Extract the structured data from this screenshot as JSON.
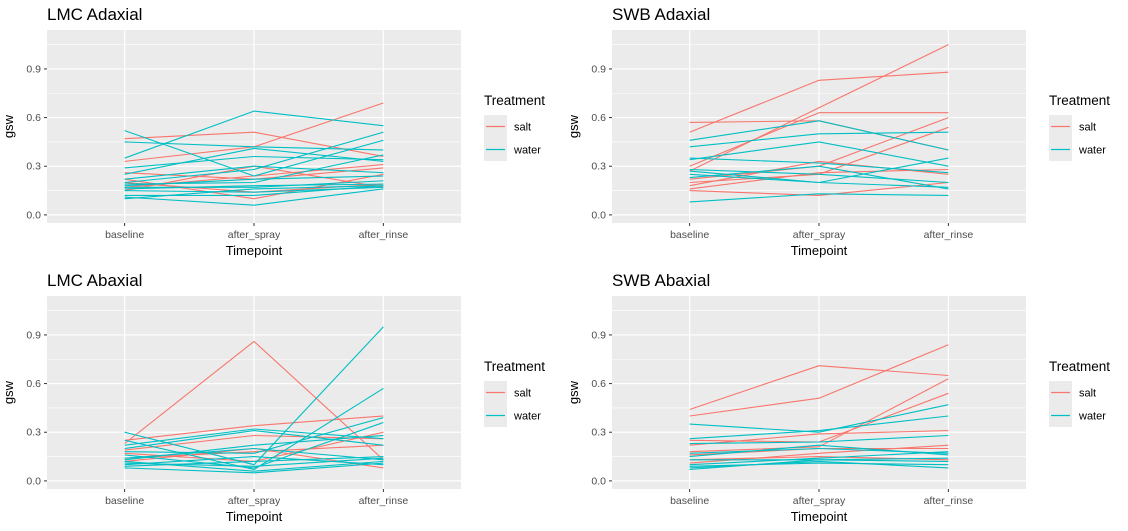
{
  "figure": {
    "legend": {
      "title": "Treatment",
      "entries": [
        "salt",
        "water"
      ]
    },
    "colors": {
      "salt": "#F8766D",
      "water": "#00BFC4",
      "panel_bg": "#EBEBEB",
      "grid": "#FFFFFF"
    }
  },
  "chart_data": [
    {
      "type": "line",
      "title": "LMC Adaxial",
      "xlabel": "Timepoint",
      "ylabel": "gsw",
      "categories": [
        "baseline",
        "after_spray",
        "after_rinse"
      ],
      "ylim": [
        -0.05,
        1.14
      ],
      "yticks": [
        0.0,
        0.3,
        0.6,
        0.9
      ],
      "ytick_labels": [
        "0.0",
        "0.3",
        "0.6",
        "0.9"
      ],
      "grid": true,
      "legend_position": "right",
      "series": [
        {
          "group": "salt",
          "values": [
            0.47,
            0.51,
            0.36
          ]
        },
        {
          "group": "salt",
          "values": [
            0.33,
            0.42,
            0.69
          ]
        },
        {
          "group": "salt",
          "values": [
            0.26,
            0.22,
            0.29
          ]
        },
        {
          "group": "salt",
          "values": [
            0.22,
            0.1,
            0.25
          ]
        },
        {
          "group": "salt",
          "values": [
            0.2,
            0.14,
            0.19
          ]
        },
        {
          "group": "salt",
          "values": [
            0.17,
            0.24,
            0.31
          ]
        },
        {
          "group": "salt",
          "values": [
            0.15,
            0.3,
            0.17
          ]
        },
        {
          "group": "water",
          "values": [
            0.52,
            0.24,
            0.46
          ]
        },
        {
          "group": "water",
          "values": [
            0.45,
            0.42,
            0.4
          ]
        },
        {
          "group": "water",
          "values": [
            0.35,
            0.64,
            0.55
          ]
        },
        {
          "group": "water",
          "values": [
            0.29,
            0.36,
            0.34
          ]
        },
        {
          "group": "water",
          "values": [
            0.25,
            0.41,
            0.33
          ]
        },
        {
          "group": "water",
          "values": [
            0.22,
            0.3,
            0.26
          ]
        },
        {
          "group": "water",
          "values": [
            0.2,
            0.28,
            0.51
          ]
        },
        {
          "group": "water",
          "values": [
            0.19,
            0.2,
            0.37
          ]
        },
        {
          "group": "water",
          "values": [
            0.18,
            0.22,
            0.24
          ]
        },
        {
          "group": "water",
          "values": [
            0.17,
            0.17,
            0.21
          ]
        },
        {
          "group": "water",
          "values": [
            0.16,
            0.18,
            0.19
          ]
        },
        {
          "group": "water",
          "values": [
            0.15,
            0.14,
            0.17
          ]
        },
        {
          "group": "water",
          "values": [
            0.12,
            0.12,
            0.18
          ]
        },
        {
          "group": "water",
          "values": [
            0.11,
            0.06,
            0.16
          ]
        },
        {
          "group": "water",
          "values": [
            0.1,
            0.16,
            0.18
          ]
        }
      ]
    },
    {
      "type": "line",
      "title": "SWB Adaxial",
      "xlabel": "Timepoint",
      "ylabel": "gsw",
      "categories": [
        "baseline",
        "after_spray",
        "after_rinse"
      ],
      "ylim": [
        -0.05,
        1.14
      ],
      "yticks": [
        0.0,
        0.3,
        0.6,
        0.9
      ],
      "ytick_labels": [
        "0.0",
        "0.3",
        "0.6",
        "0.9"
      ],
      "grid": true,
      "legend_position": "right",
      "series": [
        {
          "group": "salt",
          "values": [
            0.51,
            0.83,
            0.88
          ]
        },
        {
          "group": "salt",
          "values": [
            0.57,
            0.58,
            0.4
          ]
        },
        {
          "group": "salt",
          "values": [
            0.3,
            0.63,
            0.63
          ]
        },
        {
          "group": "salt",
          "values": [
            0.27,
            0.66,
            1.05
          ]
        },
        {
          "group": "salt",
          "values": [
            0.22,
            0.3,
            0.6
          ]
        },
        {
          "group": "salt",
          "values": [
            0.2,
            0.25,
            0.54
          ]
        },
        {
          "group": "salt",
          "values": [
            0.18,
            0.33,
            0.25
          ]
        },
        {
          "group": "salt",
          "values": [
            0.16,
            0.26,
            0.28
          ]
        },
        {
          "group": "salt",
          "values": [
            0.15,
            0.12,
            0.2
          ]
        },
        {
          "group": "water",
          "values": [
            0.46,
            0.58,
            0.4
          ]
        },
        {
          "group": "water",
          "values": [
            0.42,
            0.5,
            0.51
          ]
        },
        {
          "group": "water",
          "values": [
            0.35,
            0.32,
            0.26
          ]
        },
        {
          "group": "water",
          "values": [
            0.34,
            0.45,
            0.3
          ]
        },
        {
          "group": "water",
          "values": [
            0.28,
            0.25,
            0.2
          ]
        },
        {
          "group": "water",
          "values": [
            0.27,
            0.2,
            0.17
          ]
        },
        {
          "group": "water",
          "values": [
            0.25,
            0.2,
            0.35
          ]
        },
        {
          "group": "water",
          "values": [
            0.23,
            0.3,
            0.16
          ]
        },
        {
          "group": "water",
          "values": [
            0.08,
            0.13,
            0.12
          ]
        }
      ]
    },
    {
      "type": "line",
      "title": "LMC Abaxial",
      "xlabel": "Timepoint",
      "ylabel": "gsw",
      "categories": [
        "baseline",
        "after_spray",
        "after_rinse"
      ],
      "ylim": [
        -0.05,
        1.14
      ],
      "yticks": [
        0.0,
        0.3,
        0.6,
        0.9
      ],
      "ytick_labels": [
        "0.0",
        "0.3",
        "0.6",
        "0.9"
      ],
      "grid": true,
      "legend_position": "right",
      "series": [
        {
          "group": "salt",
          "values": [
            0.25,
            0.34,
            0.4
          ]
        },
        {
          "group": "salt",
          "values": [
            0.23,
            0.86,
            0.13
          ]
        },
        {
          "group": "salt",
          "values": [
            0.19,
            0.28,
            0.26
          ]
        },
        {
          "group": "salt",
          "values": [
            0.17,
            0.12,
            0.3
          ]
        },
        {
          "group": "salt",
          "values": [
            0.14,
            0.18,
            0.22
          ]
        },
        {
          "group": "salt",
          "values": [
            0.12,
            0.2,
            0.08
          ]
        },
        {
          "group": "water",
          "values": [
            0.3,
            0.1,
            0.95
          ]
        },
        {
          "group": "water",
          "values": [
            0.25,
            0.07,
            0.57
          ]
        },
        {
          "group": "water",
          "values": [
            0.22,
            0.32,
            0.26
          ]
        },
        {
          "group": "water",
          "values": [
            0.2,
            0.31,
            0.22
          ]
        },
        {
          "group": "water",
          "values": [
            0.18,
            0.17,
            0.39
          ]
        },
        {
          "group": "water",
          "values": [
            0.16,
            0.08,
            0.36
          ]
        },
        {
          "group": "water",
          "values": [
            0.14,
            0.2,
            0.13
          ]
        },
        {
          "group": "water",
          "values": [
            0.13,
            0.22,
            0.28
          ]
        },
        {
          "group": "water",
          "values": [
            0.12,
            0.06,
            0.12
          ]
        },
        {
          "group": "water",
          "values": [
            0.11,
            0.09,
            0.14
          ]
        },
        {
          "group": "water",
          "values": [
            0.1,
            0.15,
            0.1
          ]
        },
        {
          "group": "water",
          "values": [
            0.09,
            0.12,
            0.15
          ]
        },
        {
          "group": "water",
          "values": [
            0.08,
            0.05,
            0.11
          ]
        }
      ]
    },
    {
      "type": "line",
      "title": "SWB Abaxial",
      "xlabel": "Timepoint",
      "ylabel": "gsw",
      "categories": [
        "baseline",
        "after_spray",
        "after_rinse"
      ],
      "ylim": [
        -0.05,
        1.14
      ],
      "yticks": [
        0.0,
        0.3,
        0.6,
        0.9
      ],
      "ytick_labels": [
        "0.0",
        "0.3",
        "0.6",
        "0.9"
      ],
      "grid": true,
      "legend_position": "right",
      "series": [
        {
          "group": "salt",
          "values": [
            0.44,
            0.71,
            0.65
          ]
        },
        {
          "group": "salt",
          "values": [
            0.4,
            0.51,
            0.84
          ]
        },
        {
          "group": "salt",
          "values": [
            0.25,
            0.24,
            0.54
          ]
        },
        {
          "group": "salt",
          "values": [
            0.22,
            0.29,
            0.31
          ]
        },
        {
          "group": "salt",
          "values": [
            0.18,
            0.21,
            0.63
          ]
        },
        {
          "group": "salt",
          "values": [
            0.16,
            0.2,
            0.2
          ]
        },
        {
          "group": "salt",
          "values": [
            0.13,
            0.15,
            0.13
          ]
        },
        {
          "group": "salt",
          "values": [
            0.11,
            0.17,
            0.22
          ]
        },
        {
          "group": "water",
          "values": [
            0.35,
            0.3,
            0.47
          ]
        },
        {
          "group": "water",
          "values": [
            0.26,
            0.31,
            0.4
          ]
        },
        {
          "group": "water",
          "values": [
            0.23,
            0.24,
            0.28
          ]
        },
        {
          "group": "water",
          "values": [
            0.17,
            0.2,
            0.17
          ]
        },
        {
          "group": "water",
          "values": [
            0.15,
            0.22,
            0.16
          ]
        },
        {
          "group": "water",
          "values": [
            0.13,
            0.13,
            0.14
          ]
        },
        {
          "group": "water",
          "values": [
            0.1,
            0.14,
            0.18
          ]
        },
        {
          "group": "water",
          "values": [
            0.09,
            0.11,
            0.1
          ]
        },
        {
          "group": "water",
          "values": [
            0.08,
            0.12,
            0.08
          ]
        },
        {
          "group": "water",
          "values": [
            0.07,
            0.13,
            0.12
          ]
        }
      ]
    }
  ]
}
